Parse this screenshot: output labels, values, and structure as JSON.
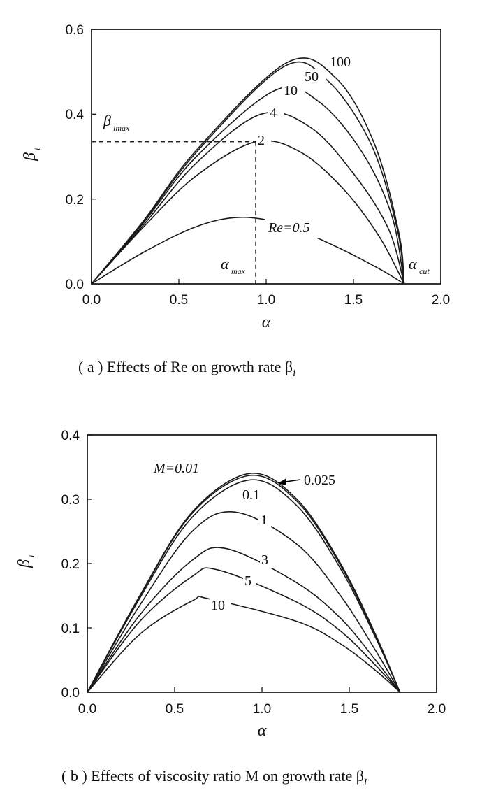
{
  "chart_data": [
    {
      "type": "line",
      "caption": "( a )  Effects of Re on growth rate β",
      "caption_subscript": "i",
      "xlabel": "α",
      "ylabel": "β",
      "ylabel_subscript": "i",
      "xlim": [
        0.0,
        2.0
      ],
      "ylim": [
        0.0,
        0.6
      ],
      "xticks": [
        "0.0",
        "0.5",
        "1.0",
        "1.5",
        "2.0"
      ],
      "yticks": [
        "0.0",
        "0.2",
        "0.4",
        "0.6"
      ],
      "series": [
        {
          "name": "Re=0.5",
          "x": [
            0,
            0.3,
            0.6,
            0.85,
            1.1,
            1.4,
            1.65,
            1.79
          ],
          "y": [
            0,
            0.075,
            0.135,
            0.157,
            0.14,
            0.088,
            0.035,
            0
          ]
        },
        {
          "name": "2",
          "x": [
            0,
            0.3,
            0.6,
            0.94,
            1.2,
            1.45,
            1.65,
            1.79
          ],
          "y": [
            0,
            0.135,
            0.255,
            0.335,
            0.31,
            0.22,
            0.11,
            0
          ]
        },
        {
          "name": "4",
          "x": [
            0,
            0.3,
            0.6,
            0.97,
            1.25,
            1.5,
            1.7,
            1.79
          ],
          "y": [
            0,
            0.14,
            0.285,
            0.4,
            0.37,
            0.26,
            0.13,
            0
          ]
        },
        {
          "name": "10",
          "x": [
            0,
            0.3,
            0.6,
            1.05,
            1.3,
            1.55,
            1.72,
            1.79
          ],
          "y": [
            0,
            0.145,
            0.3,
            0.456,
            0.43,
            0.31,
            0.16,
            0
          ]
        },
        {
          "name": "50",
          "x": [
            0,
            0.3,
            0.6,
            1.1,
            1.35,
            1.6,
            1.75,
            1.79
          ],
          "y": [
            0,
            0.148,
            0.31,
            0.512,
            0.48,
            0.33,
            0.13,
            0
          ]
        },
        {
          "name": "100",
          "x": [
            0,
            0.3,
            0.6,
            1.12,
            1.4,
            1.62,
            1.76,
            1.79
          ],
          "y": [
            0,
            0.15,
            0.315,
            0.522,
            0.485,
            0.33,
            0.12,
            0
          ]
        }
      ],
      "annotations": {
        "beta_max_label": "β",
        "beta_max_sub": "imax",
        "alpha_max_label": "α",
        "alpha_max_sub": "max",
        "alpha_cut_label": "α",
        "alpha_cut_sub": "cut",
        "alpha_max_value": 0.94,
        "beta_max_value": 0.335,
        "alpha_cut_value": 1.79
      }
    },
    {
      "type": "line",
      "caption": "( b )  Effects of viscosity ratio M on growth rate β",
      "caption_subscript": "i",
      "xlabel": "α",
      "ylabel": "β",
      "ylabel_subscript": "i",
      "xlim": [
        0.0,
        2.0
      ],
      "ylim": [
        0.0,
        0.4
      ],
      "xticks": [
        "0.0",
        "0.5",
        "1.0",
        "1.5",
        "2.0"
      ],
      "yticks": [
        "0.0",
        "0.1",
        "0.2",
        "0.3",
        "0.4"
      ],
      "series": [
        {
          "name": "M=0.01",
          "x": [
            0,
            0.3,
            0.6,
            0.93,
            1.2,
            1.45,
            1.65,
            1.79
          ],
          "y": [
            0,
            0.15,
            0.28,
            0.34,
            0.3,
            0.2,
            0.09,
            0
          ]
        },
        {
          "name": "0.025",
          "x": [
            0,
            0.3,
            0.6,
            0.93,
            1.2,
            1.45,
            1.65,
            1.79
          ],
          "y": [
            0,
            0.149,
            0.278,
            0.337,
            0.297,
            0.197,
            0.088,
            0
          ]
        },
        {
          "name": "0.1",
          "x": [
            0,
            0.3,
            0.6,
            0.93,
            1.2,
            1.45,
            1.65,
            1.79
          ],
          "y": [
            0,
            0.146,
            0.272,
            0.33,
            0.29,
            0.192,
            0.085,
            0
          ]
        },
        {
          "name": "1",
          "x": [
            0,
            0.3,
            0.6,
            0.85,
            1.2,
            1.45,
            1.65,
            1.79
          ],
          "y": [
            0,
            0.135,
            0.25,
            0.28,
            0.23,
            0.15,
            0.065,
            0
          ]
        },
        {
          "name": "3",
          "x": [
            0,
            0.3,
            0.6,
            0.8,
            1.2,
            1.45,
            1.65,
            1.79
          ],
          "y": [
            0,
            0.12,
            0.205,
            0.223,
            0.17,
            0.115,
            0.05,
            0
          ]
        },
        {
          "name": "5",
          "x": [
            0,
            0.3,
            0.6,
            0.75,
            1.2,
            1.45,
            1.65,
            1.79
          ],
          "y": [
            0,
            0.11,
            0.18,
            0.19,
            0.14,
            0.095,
            0.042,
            0
          ]
        },
        {
          "name": "10",
          "x": [
            0,
            0.3,
            0.6,
            0.7,
            1.2,
            1.45,
            1.65,
            1.79
          ],
          "y": [
            0,
            0.09,
            0.142,
            0.145,
            0.11,
            0.075,
            0.034,
            0
          ]
        }
      ]
    }
  ]
}
